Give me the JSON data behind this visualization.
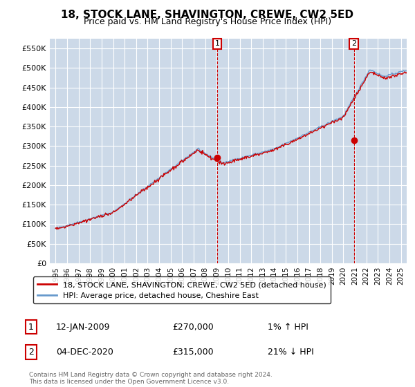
{
  "title": "18, STOCK LANE, SHAVINGTON, CREWE, CW2 5ED",
  "subtitle": "Price paid vs. HM Land Registry's House Price Index (HPI)",
  "ylabel_ticks": [
    "£0",
    "£50K",
    "£100K",
    "£150K",
    "£200K",
    "£250K",
    "£300K",
    "£350K",
    "£400K",
    "£450K",
    "£500K",
    "£550K"
  ],
  "ytick_values": [
    0,
    50000,
    100000,
    150000,
    200000,
    250000,
    300000,
    350000,
    400000,
    450000,
    500000,
    550000
  ],
  "ylim": [
    0,
    575000
  ],
  "xlim_start": 1994.5,
  "xlim_end": 2025.5,
  "background_color": "#ccd9e8",
  "line_color_property": "#cc0000",
  "line_color_hpi": "#6699cc",
  "marker1_x": 2009.04,
  "marker1_y": 270000,
  "marker2_x": 2020.92,
  "marker2_y": 315000,
  "legend_property": "18, STOCK LANE, SHAVINGTON, CREWE, CW2 5ED (detached house)",
  "legend_hpi": "HPI: Average price, detached house, Cheshire East",
  "annotation1_box": "1",
  "annotation1_date": "12-JAN-2009",
  "annotation1_price": "£270,000",
  "annotation1_hpi": "1% ↑ HPI",
  "annotation2_box": "2",
  "annotation2_date": "04-DEC-2020",
  "annotation2_price": "£315,000",
  "annotation2_hpi": "21% ↓ HPI",
  "footer": "Contains HM Land Registry data © Crown copyright and database right 2024.\nThis data is licensed under the Open Government Licence v3.0.",
  "xtick_years": [
    1995,
    1996,
    1997,
    1998,
    1999,
    2000,
    2001,
    2002,
    2003,
    2004,
    2005,
    2006,
    2007,
    2008,
    2009,
    2010,
    2011,
    2012,
    2013,
    2014,
    2015,
    2016,
    2017,
    2018,
    2019,
    2020,
    2021,
    2022,
    2023,
    2024,
    2025
  ]
}
